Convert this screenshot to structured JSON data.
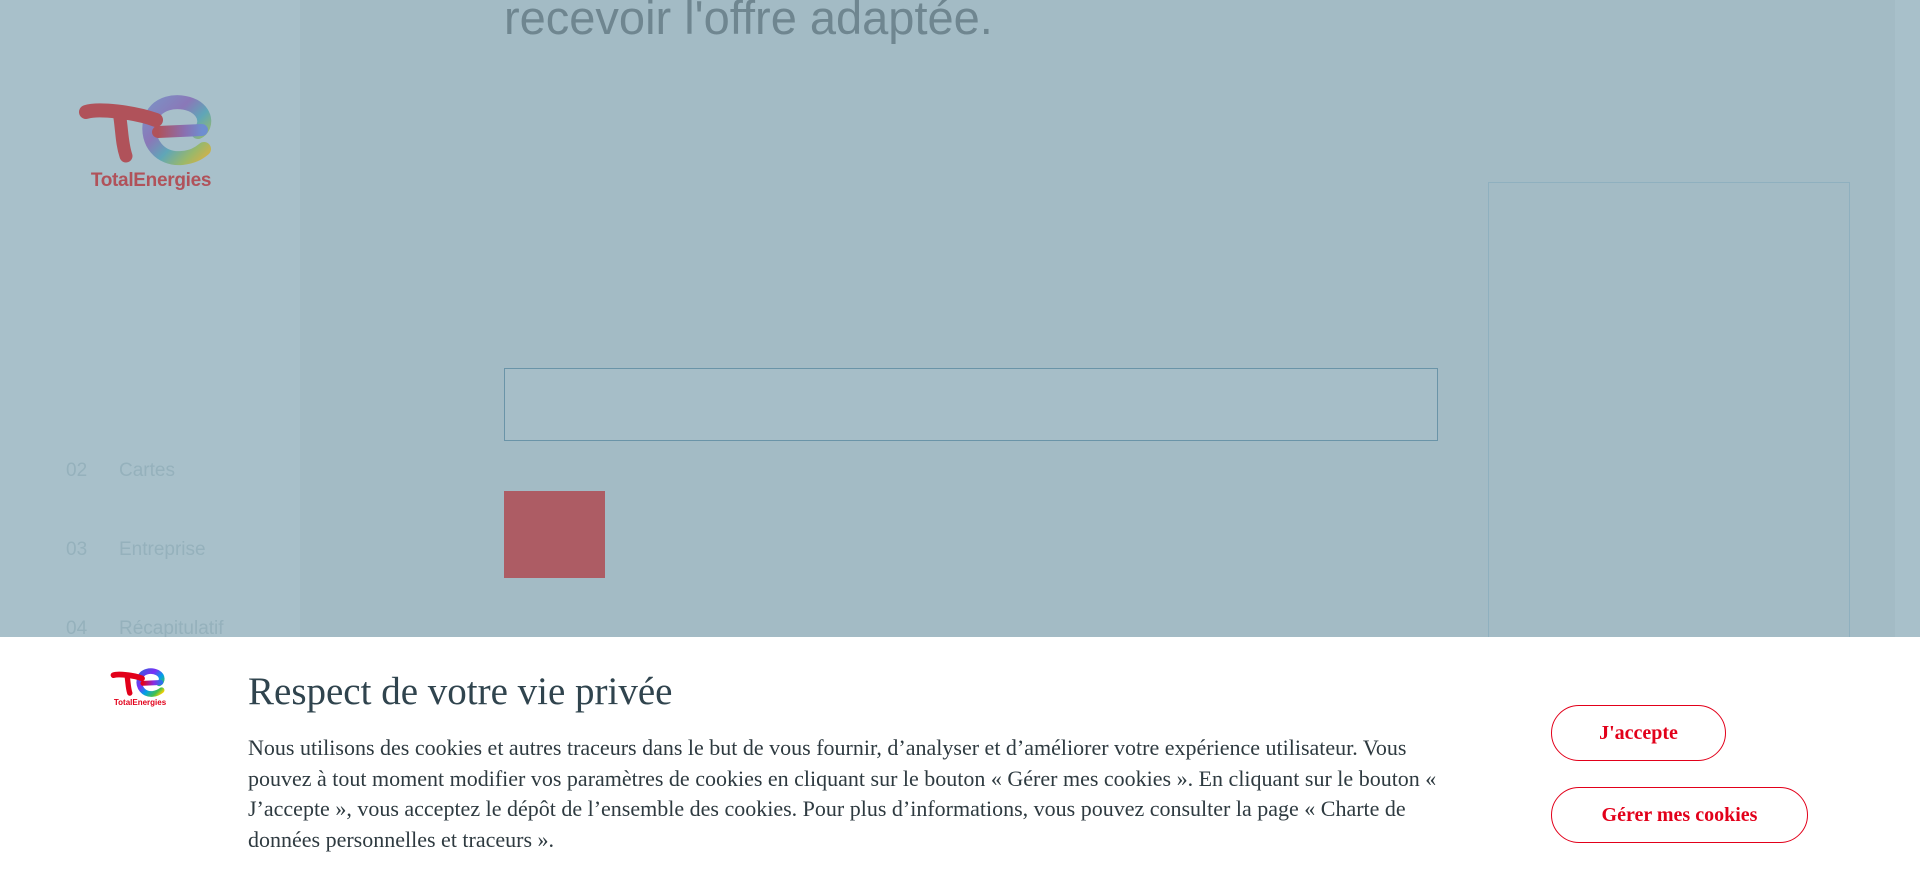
{
  "brand": {
    "name": "TotalEnergies",
    "colors": {
      "red": "#e2001a",
      "faded_red": "#b0525a",
      "overlay": "#a4bcc6"
    }
  },
  "page": {
    "heading_visible": "recevoir l'offre adaptée."
  },
  "steps": [
    {
      "number": "02",
      "label": "Cartes"
    },
    {
      "number": "03",
      "label": "Entreprise"
    },
    {
      "number": "04",
      "label": "Récapitulatif"
    }
  ],
  "cookie_banner": {
    "title": "Respect de votre vie privée",
    "text": "Nous utilisons des cookies et autres traceurs dans le but de vous fournir, d’analyser et d’améliorer votre expérience utilisateur. Vous pouvez à tout moment modifier vos paramètres de cookies en cliquant sur le bouton « Gérer mes cookies ». En cliquant sur le bouton « J’accepte », vous acceptez le dépôt de l’ensemble des cookies. Pour plus d’informations, vous pouvez consulter la page « Charte de données personnelles et traceurs ».",
    "accept_label": "J'accepte",
    "manage_label": "Gérer mes cookies",
    "logo_name": "TotalEnergies"
  }
}
